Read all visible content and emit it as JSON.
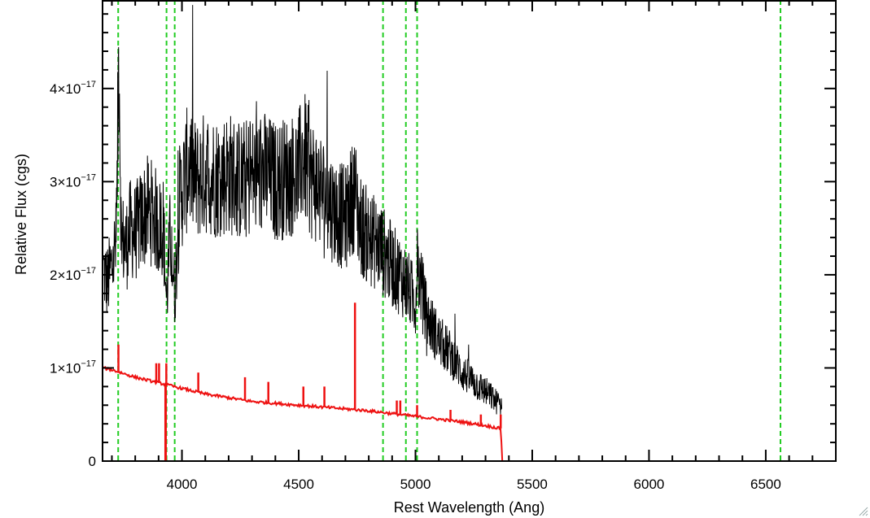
{
  "chart_data": {
    "type": "line",
    "title": "",
    "xlabel": "Rest Wavelength (Ang)",
    "ylabel": "Relative Flux (cgs)",
    "xlim": [
      3660,
      6800
    ],
    "ylim": [
      0,
      4.95e-17
    ],
    "x_ticks": [
      {
        "value": 4000,
        "label": "4000"
      },
      {
        "value": 4500,
        "label": "4500"
      },
      {
        "value": 5000,
        "label": "5000"
      },
      {
        "value": 5500,
        "label": "5500"
      },
      {
        "value": 6000,
        "label": "6000"
      },
      {
        "value": 6500,
        "label": "6500"
      }
    ],
    "y_ticks": [
      {
        "value": 0,
        "mantissa": "0",
        "exponent": ""
      },
      {
        "value": 1e-17,
        "mantissa": "1×10",
        "exponent": "−17"
      },
      {
        "value": 2e-17,
        "mantissa": "2×10",
        "exponent": "−17"
      },
      {
        "value": 3e-17,
        "mantissa": "3×10",
        "exponent": "−17"
      },
      {
        "value": 4e-17,
        "mantissa": "4×10",
        "exponent": "−17"
      }
    ],
    "grid": false,
    "reference_lines": {
      "color": "#22cc22",
      "style": "dashed",
      "x": [
        3727,
        3934,
        3969,
        4861,
        4959,
        5007,
        6563
      ]
    },
    "series": [
      {
        "color": "#000000",
        "style": "noisy",
        "x": [
          3665,
          3680,
          3700,
          3720,
          3730,
          3740,
          3760,
          3780,
          3800,
          3820,
          3850,
          3880,
          3900,
          3920,
          3934,
          3950,
          3969,
          3990,
          4010,
          4030,
          4060,
          4100,
          4150,
          4200,
          4250,
          4300,
          4350,
          4400,
          4450,
          4500,
          4520,
          4550,
          4600,
          4650,
          4700,
          4740,
          4760,
          4800,
          4850,
          4900,
          4950,
          5000,
          5007,
          5050,
          5100,
          5150,
          5200,
          5250,
          5300,
          5340,
          5370
        ],
        "y": [
          2.05e-17,
          1.9e-17,
          2.1e-17,
          2.35e-17,
          4.6e-17,
          2.4e-17,
          2.3e-17,
          2.5e-17,
          2.45e-17,
          2.55e-17,
          2.7e-17,
          2.65e-17,
          2.5e-17,
          2.55e-17,
          1.7e-17,
          2.45e-17,
          1.8e-17,
          2.8e-17,
          3e-17,
          3.2e-17,
          3e-17,
          3.1e-17,
          3.05e-17,
          3.1e-17,
          3e-17,
          3.05e-17,
          3.1e-17,
          3e-17,
          3.05e-17,
          3.1e-17,
          3.3e-17,
          3.05e-17,
          2.9e-17,
          2.7e-17,
          2.6e-17,
          2.9e-17,
          2.55e-17,
          2.4e-17,
          2.3e-17,
          2.1e-17,
          1.95e-17,
          1.7e-17,
          2.1e-17,
          1.55e-17,
          1.3e-17,
          1.15e-17,
          9.5e-18,
          8.5e-18,
          7.5e-18,
          6.5e-18,
          6e-18
        ]
      },
      {
        "color": "#ee1111",
        "style": "model",
        "x": [
          3660,
          3700,
          3800,
          3900,
          4000,
          4100,
          4200,
          4300,
          4400,
          4500,
          4600,
          4700,
          4800,
          4900,
          5000,
          5100,
          5200,
          5300,
          5365,
          5372,
          5400,
          6000,
          6500,
          6800
        ],
        "y": [
          1e-17,
          9.8e-18,
          9e-18,
          8.4e-18,
          7.8e-18,
          7.2e-18,
          6.8e-18,
          6.4e-18,
          6.2e-18,
          6e-18,
          5.8e-18,
          5.6e-18,
          5.4e-18,
          5.1e-18,
          4.8e-18,
          4.5e-18,
          4.2e-18,
          3.8e-18,
          3.5e-18,
          0,
          0,
          0,
          0,
          0
        ],
        "spikes": [
          {
            "x": 3728,
            "y": 1.25e-17
          },
          {
            "x": 3890,
            "y": 1.05e-17
          },
          {
            "x": 3902,
            "y": 1.05e-17
          },
          {
            "x": 3933,
            "y": 1.05e-17
          },
          {
            "x": 4070,
            "y": 9.5e-18
          },
          {
            "x": 4270,
            "y": 9e-18
          },
          {
            "x": 4370,
            "y": 8.5e-18
          },
          {
            "x": 4520,
            "y": 8e-18
          },
          {
            "x": 4610,
            "y": 8e-18
          },
          {
            "x": 4741,
            "y": 1.7e-17
          },
          {
            "x": 4920,
            "y": 6.5e-18
          },
          {
            "x": 4935,
            "y": 6.5e-18
          },
          {
            "x": 5007,
            "y": 6e-18
          },
          {
            "x": 5150,
            "y": 5.5e-18
          },
          {
            "x": 5280,
            "y": 5e-18
          },
          {
            "x": 5365,
            "y": 5e-18
          }
        ]
      }
    ]
  }
}
